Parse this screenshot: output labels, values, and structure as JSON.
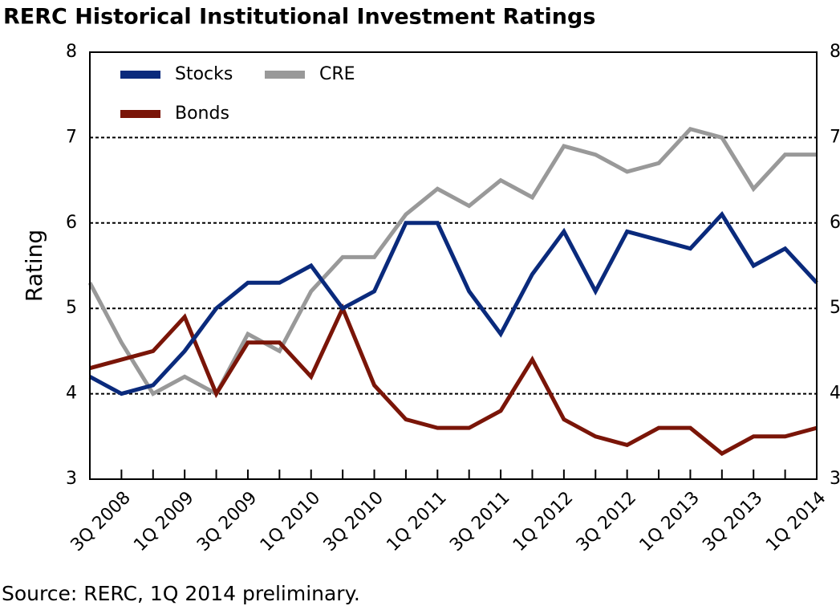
{
  "chart_data": {
    "type": "line",
    "title": "RERC Historical Institutional Investment Ratings",
    "y_label": "Rating",
    "source": "Source: RERC, 1Q 2014 preliminary.",
    "categories": [
      null,
      "3Q 2008",
      null,
      "1Q 2009",
      null,
      "3Q 2009",
      null,
      "1Q 2010",
      null,
      "3Q 2010",
      null,
      "1Q 2011",
      null,
      "3Q 2011",
      null,
      "1Q 2012",
      null,
      "3Q 2012",
      null,
      "1Q 2013",
      null,
      "3Q 2013",
      null,
      "1Q 2014"
    ],
    "series": [
      {
        "name": "Stocks",
        "color": "#0a2a7c",
        "values": [
          4.2,
          4.0,
          4.1,
          4.5,
          5.0,
          5.3,
          5.3,
          5.5,
          5.0,
          5.2,
          6.0,
          6.0,
          5.2,
          4.7,
          5.4,
          5.9,
          5.2,
          5.9,
          5.8,
          5.7,
          6.1,
          5.5,
          5.7,
          5.3
        ]
      },
      {
        "name": "CRE",
        "color": "#999999",
        "values": [
          5.3,
          4.6,
          4.0,
          4.2,
          4.0,
          4.7,
          4.5,
          5.2,
          5.6,
          5.6,
          6.1,
          6.4,
          6.2,
          6.5,
          6.3,
          6.9,
          6.8,
          6.6,
          6.7,
          7.1,
          7.0,
          6.4,
          6.8,
          6.8
        ]
      },
      {
        "name": "Bonds",
        "color": "#7a1508",
        "values": [
          4.3,
          4.4,
          4.5,
          4.9,
          4.0,
          4.6,
          4.6,
          4.2,
          5.0,
          4.1,
          3.7,
          3.6,
          3.6,
          3.8,
          4.4,
          3.7,
          3.5,
          3.4,
          3.6,
          3.6,
          3.3,
          3.5,
          3.5,
          3.6
        ]
      }
    ],
    "ylim": [
      3,
      8
    ],
    "yticks": [
      3,
      4,
      5,
      6,
      7,
      8
    ],
    "grid": true
  }
}
